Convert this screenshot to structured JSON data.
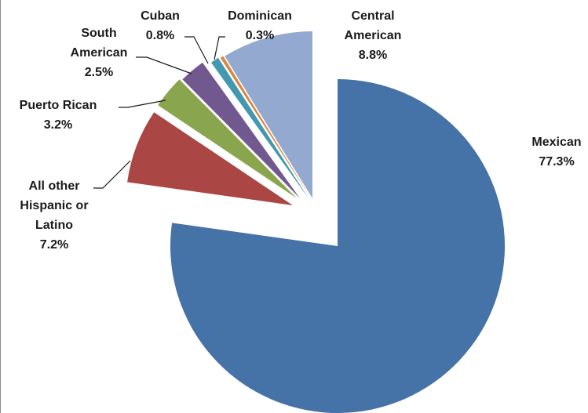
{
  "chart_data": {
    "type": "pie",
    "exploded": true,
    "legend": "none",
    "slices": [
      {
        "name": "Mexican",
        "value": 77.3,
        "label": "77.3%",
        "color": "#4572A7",
        "name_lines": [
          "Mexican"
        ]
      },
      {
        "name": "All other Hispanic or Latino",
        "value": 7.2,
        "label": "7.2%",
        "color": "#AA4643",
        "name_lines": [
          "All other",
          "Hispanic or",
          "Latino"
        ]
      },
      {
        "name": "Puerto Rican",
        "value": 3.2,
        "label": "3.2%",
        "color": "#89A54E",
        "name_lines": [
          "Puerto Rican"
        ]
      },
      {
        "name": "South American",
        "value": 2.5,
        "label": "2.5%",
        "color": "#71588F",
        "name_lines": [
          "South",
          "American"
        ]
      },
      {
        "name": "Cuban",
        "value": 0.8,
        "label": "0.8%",
        "color": "#4198AF",
        "name_lines": [
          "Cuban"
        ]
      },
      {
        "name": "Dominican",
        "value": 0.3,
        "label": "0.3%",
        "color": "#DB843D",
        "name_lines": [
          "Dominican"
        ]
      },
      {
        "name": "Central American",
        "value": 8.8,
        "label": "8.8%",
        "color": "#93A9CF",
        "name_lines": [
          "Central",
          "American"
        ]
      }
    ]
  }
}
